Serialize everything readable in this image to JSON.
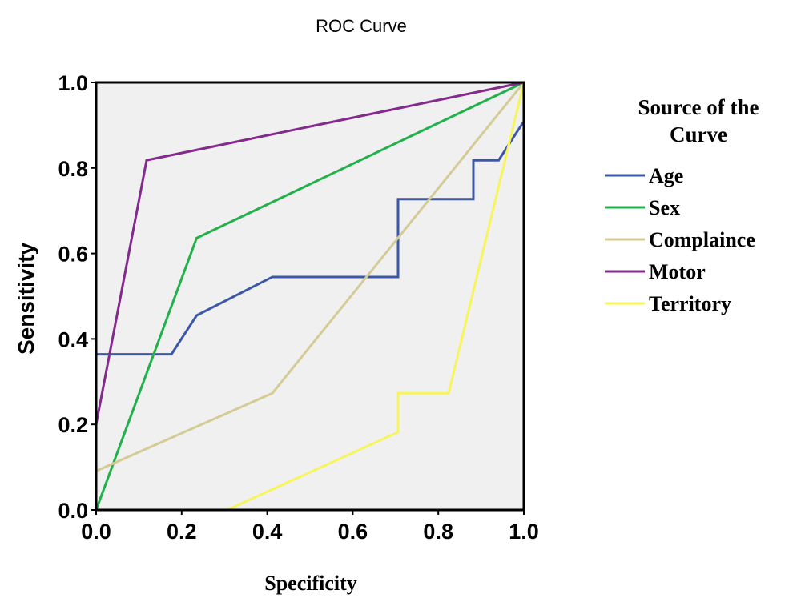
{
  "chart_data": {
    "type": "line",
    "title": "ROC Curve",
    "xlabel": "Specificity",
    "ylabel": "Sensitivity",
    "xlim": [
      0,
      1
    ],
    "ylim": [
      0,
      1
    ],
    "x_ticks": [
      "0.0",
      "0.2",
      "0.4",
      "0.6",
      "0.8",
      "1.0"
    ],
    "y_ticks": [
      "0.0",
      "0.2",
      "0.4",
      "0.6",
      "0.8",
      "1.0"
    ],
    "grid": false,
    "plot_background": "#f0f0f0",
    "legend": {
      "title_lines": [
        "Source of the",
        "Curve"
      ],
      "placement": "right"
    },
    "series": [
      {
        "name": "Age",
        "color": "#3b57a8",
        "points": [
          [
            0,
            0.364
          ],
          [
            0.176,
            0.364
          ],
          [
            0.235,
            0.455
          ],
          [
            0.412,
            0.545
          ],
          [
            0.706,
            0.545
          ],
          [
            0.706,
            0.727
          ],
          [
            0.882,
            0.727
          ],
          [
            0.882,
            0.818
          ],
          [
            0.941,
            0.818
          ],
          [
            1.0,
            0.909
          ]
        ]
      },
      {
        "name": "Sex",
        "color": "#21b14a",
        "points": [
          [
            0,
            0
          ],
          [
            0.235,
            0.636
          ],
          [
            1.0,
            1.0
          ]
        ]
      },
      {
        "name": "Complaince",
        "color": "#d4cb96",
        "points": [
          [
            0,
            0.091
          ],
          [
            0.412,
            0.273
          ],
          [
            1.0,
            1.0
          ]
        ]
      },
      {
        "name": "Motor",
        "color": "#832a8c",
        "points": [
          [
            0,
            0.2
          ],
          [
            0.118,
            0.818
          ],
          [
            1.0,
            1.0
          ]
        ]
      },
      {
        "name": "Territory",
        "color": "#f7f55a",
        "points": [
          [
            0.306,
            0
          ],
          [
            0.706,
            0.182
          ],
          [
            0.706,
            0.273
          ],
          [
            0.824,
            0.273
          ],
          [
            1.0,
            1.0
          ]
        ]
      }
    ]
  }
}
